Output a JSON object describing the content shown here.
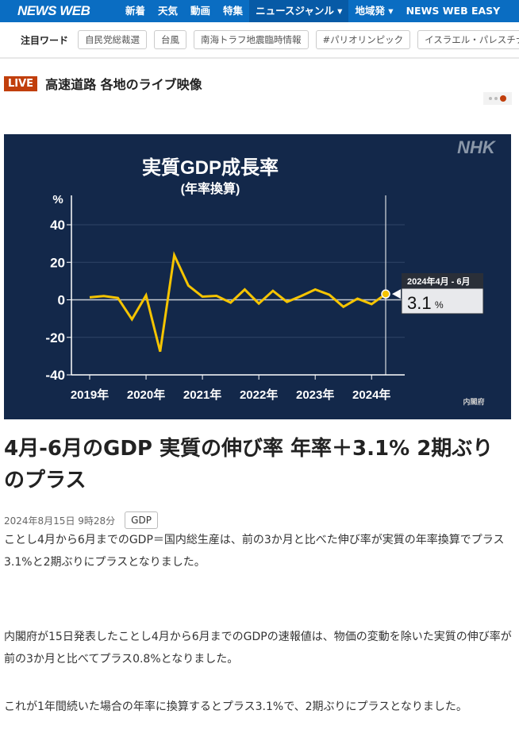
{
  "nav": {
    "logo": "NEWS WEB",
    "items": [
      "新着",
      "天気",
      "動画",
      "特集",
      "ニュースジャンル ▾",
      "地域発 ▾",
      "NEWS WEB EASY"
    ]
  },
  "trending": {
    "label": "注目ワード",
    "tags": [
      "自民党総裁選",
      "台風",
      "南海トラフ地震臨時情報",
      "#パリオリンピック",
      "イスラエル・パレスチナ"
    ]
  },
  "live": {
    "badge": "LIVE",
    "title": "高速道路 各地のライブ映像"
  },
  "chart_data": {
    "type": "line",
    "title": "実質GDP成長率",
    "subtitle": "(年率換算)",
    "ylabel": "%",
    "ylim": [
      -40,
      40
    ],
    "yticks": [
      40,
      20,
      0,
      -20,
      -40
    ],
    "xticks": [
      "2019年",
      "2020年",
      "2021年",
      "2022年",
      "2023年",
      "2024年"
    ],
    "grid": true,
    "logo": "NHK",
    "source": "内閣府",
    "color": "#f5c400",
    "series": [
      {
        "name": "実質GDP成長率",
        "values": [
          1.3,
          2.0,
          1.0,
          -10.4,
          2.4,
          -27.6,
          23.8,
          7.6,
          1.7,
          2.1,
          -1.5,
          5.5,
          -2.0,
          4.8,
          -1.1,
          2.0,
          5.5,
          2.7,
          -3.7,
          0.6,
          -2.3,
          3.1
        ]
      }
    ],
    "tooltip": {
      "period": "2024年4月 - 6月",
      "value": "3.1",
      "unit": "%"
    }
  },
  "article": {
    "headline": "4月-6月のGDP 実質の伸び率 年率＋3.1% 2期ぶりのプラス",
    "date": "2024年8月15日 9時28分",
    "tag": "GDP",
    "paragraphs": [
      "ことし4月から6月までのGDP＝国内総生産は、前の3か月と比べた伸び率が実質の年率換算でプラス3.1%と2期ぶりにプラスとなりました。",
      "内閣府が15日発表したことし4月から6月までのGDPの速報値は、物価の変動を除いた実質の伸び率が前の3か月と比べてプラス0.8%となりました。",
      "これが1年間続いた場合の年率に換算するとプラス3.1%で、2期ぶりにプラスとなりました。"
    ]
  }
}
